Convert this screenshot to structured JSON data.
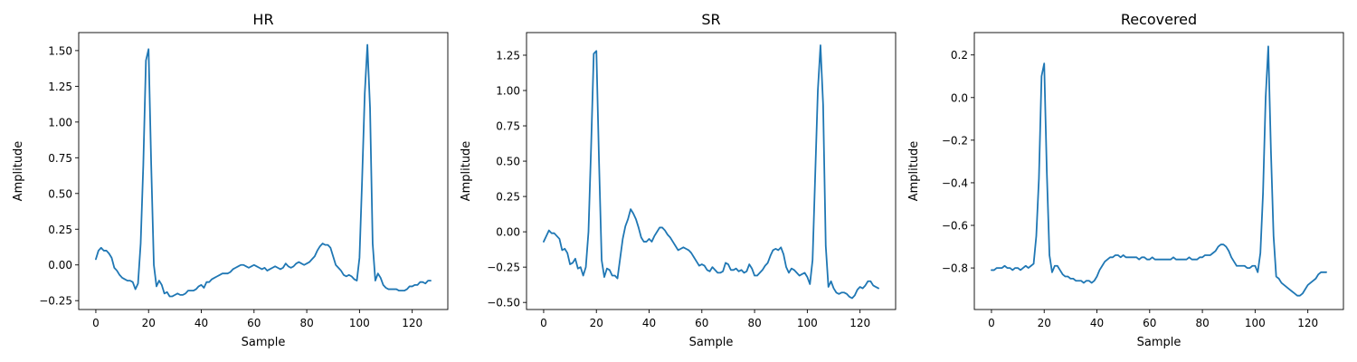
{
  "chart_data": [
    {
      "type": "line",
      "title": "HR",
      "xlabel": "Sample",
      "ylabel": "Amplitude",
      "xlim": [
        -6.5,
        133.5
      ],
      "ylim": [
        -0.312,
        1.626
      ],
      "xticks": [
        0,
        20,
        40,
        60,
        80,
        100,
        120
      ],
      "xtick_labels": [
        "0",
        "20",
        "40",
        "60",
        "80",
        "100",
        "120"
      ],
      "yticks": [
        -0.25,
        0,
        0.25,
        0.5,
        0.75,
        1.0,
        1.25,
        1.5
      ],
      "ytick_labels": [
        "−0.25",
        "0.00",
        "0.25",
        "0.50",
        "0.75",
        "1.00",
        "1.25",
        "1.50"
      ],
      "grid": false,
      "series": [
        {
          "color": "#1f77b4",
          "x": [
            0,
            1,
            2,
            3,
            4,
            5,
            6,
            7,
            8,
            9,
            10,
            11,
            12,
            13,
            14,
            15,
            16,
            17,
            18,
            19,
            20,
            21,
            22,
            23,
            24,
            25,
            26,
            27,
            28,
            29,
            30,
            31,
            32,
            33,
            34,
            35,
            36,
            37,
            38,
            39,
            40,
            41,
            42,
            43,
            44,
            45,
            46,
            47,
            48,
            49,
            50,
            51,
            52,
            53,
            54,
            55,
            56,
            57,
            58,
            59,
            60,
            61,
            62,
            63,
            64,
            65,
            66,
            67,
            68,
            69,
            70,
            71,
            72,
            73,
            74,
            75,
            76,
            77,
            78,
            79,
            80,
            81,
            82,
            83,
            84,
            85,
            86,
            87,
            88,
            89,
            90,
            91,
            92,
            93,
            94,
            95,
            96,
            97,
            98,
            99,
            100,
            101,
            102,
            103,
            104,
            105,
            106,
            107,
            108,
            109,
            110,
            111,
            112,
            113,
            114,
            115,
            116,
            117,
            118,
            119,
            120,
            121,
            122,
            123,
            124,
            125,
            126,
            127
          ],
          "y": [
            0.04,
            0.1,
            0.12,
            0.1,
            0.1,
            0.08,
            0.05,
            -0.02,
            -0.04,
            -0.07,
            -0.09,
            -0.1,
            -0.11,
            -0.11,
            -0.12,
            -0.17,
            -0.13,
            0.15,
            0.7,
            1.43,
            1.51,
            0.7,
            0.0,
            -0.15,
            -0.11,
            -0.14,
            -0.2,
            -0.19,
            -0.22,
            -0.22,
            -0.21,
            -0.2,
            -0.21,
            -0.21,
            -0.2,
            -0.18,
            -0.18,
            -0.18,
            -0.17,
            -0.15,
            -0.14,
            -0.16,
            -0.12,
            -0.12,
            -0.1,
            -0.09,
            -0.08,
            -0.07,
            -0.06,
            -0.06,
            -0.06,
            -0.05,
            -0.03,
            -0.02,
            -0.01,
            -0.0,
            -0.0,
            -0.01,
            -0.02,
            -0.01,
            -0.0,
            -0.01,
            -0.02,
            -0.03,
            -0.02,
            -0.04,
            -0.03,
            -0.02,
            -0.01,
            -0.02,
            -0.03,
            -0.02,
            0.01,
            -0.01,
            -0.02,
            -0.01,
            0.01,
            0.02,
            0.01,
            0.0,
            0.01,
            0.02,
            0.04,
            0.06,
            0.1,
            0.13,
            0.15,
            0.14,
            0.14,
            0.12,
            0.06,
            0.0,
            -0.02,
            -0.04,
            -0.07,
            -0.08,
            -0.07,
            -0.08,
            -0.1,
            -0.11,
            0.05,
            0.6,
            1.2,
            1.54,
            1.1,
            0.15,
            -0.11,
            -0.06,
            -0.09,
            -0.14,
            -0.16,
            -0.17,
            -0.17,
            -0.17,
            -0.17,
            -0.18,
            -0.18,
            -0.18,
            -0.17,
            -0.15,
            -0.15,
            -0.14,
            -0.14,
            -0.12,
            -0.12,
            -0.13,
            -0.11,
            -0.11
          ]
        }
      ]
    },
    {
      "type": "line",
      "title": "SR",
      "xlabel": "Sample",
      "ylabel": "Amplitude",
      "xlim": [
        -6.5,
        133.5
      ],
      "ylim": [
        -0.55,
        1.41
      ],
      "xticks": [
        0,
        20,
        40,
        60,
        80,
        100,
        120
      ],
      "xtick_labels": [
        "0",
        "20",
        "40",
        "60",
        "80",
        "100",
        "120"
      ],
      "yticks": [
        -0.5,
        -0.25,
        0,
        0.25,
        0.5,
        0.75,
        1.0,
        1.25
      ],
      "ytick_labels": [
        "−0.50",
        "−0.25",
        "0.00",
        "0.25",
        "0.50",
        "0.75",
        "1.00",
        "1.25"
      ],
      "grid": false,
      "series": [
        {
          "color": "#1f77b4",
          "x": [
            0,
            1,
            2,
            3,
            4,
            5,
            6,
            7,
            8,
            9,
            10,
            11,
            12,
            13,
            14,
            15,
            16,
            17,
            18,
            19,
            20,
            21,
            22,
            23,
            24,
            25,
            26,
            27,
            28,
            29,
            30,
            31,
            32,
            33,
            34,
            35,
            36,
            37,
            38,
            39,
            40,
            41,
            42,
            43,
            44,
            45,
            46,
            47,
            48,
            49,
            50,
            51,
            52,
            53,
            54,
            55,
            56,
            57,
            58,
            59,
            60,
            61,
            62,
            63,
            64,
            65,
            66,
            67,
            68,
            69,
            70,
            71,
            72,
            73,
            74,
            75,
            76,
            77,
            78,
            79,
            80,
            81,
            82,
            83,
            84,
            85,
            86,
            87,
            88,
            89,
            90,
            91,
            92,
            93,
            94,
            95,
            96,
            97,
            98,
            99,
            100,
            101,
            102,
            103,
            104,
            105,
            106,
            107,
            108,
            109,
            110,
            111,
            112,
            113,
            114,
            115,
            116,
            117,
            118,
            119,
            120,
            121,
            122,
            123,
            124,
            125,
            126,
            127
          ],
          "y": [
            -0.07,
            -0.03,
            0.01,
            -0.01,
            -0.01,
            -0.03,
            -0.05,
            -0.13,
            -0.12,
            -0.15,
            -0.23,
            -0.22,
            -0.19,
            -0.26,
            -0.25,
            -0.31,
            -0.25,
            0.0,
            0.6,
            1.26,
            1.28,
            0.5,
            -0.2,
            -0.32,
            -0.26,
            -0.27,
            -0.31,
            -0.31,
            -0.33,
            -0.19,
            -0.05,
            0.04,
            0.09,
            0.16,
            0.13,
            0.09,
            0.03,
            -0.04,
            -0.07,
            -0.07,
            -0.05,
            -0.07,
            -0.03,
            -0.0,
            0.03,
            0.03,
            0.01,
            -0.02,
            -0.04,
            -0.07,
            -0.1,
            -0.13,
            -0.12,
            -0.11,
            -0.12,
            -0.13,
            -0.15,
            -0.18,
            -0.21,
            -0.24,
            -0.23,
            -0.24,
            -0.27,
            -0.28,
            -0.25,
            -0.27,
            -0.29,
            -0.29,
            -0.28,
            -0.22,
            -0.23,
            -0.27,
            -0.27,
            -0.26,
            -0.28,
            -0.27,
            -0.29,
            -0.28,
            -0.23,
            -0.26,
            -0.31,
            -0.31,
            -0.29,
            -0.27,
            -0.24,
            -0.22,
            -0.17,
            -0.13,
            -0.12,
            -0.13,
            -0.11,
            -0.16,
            -0.25,
            -0.29,
            -0.26,
            -0.27,
            -0.29,
            -0.31,
            -0.3,
            -0.29,
            -0.32,
            -0.37,
            -0.2,
            0.4,
            1.0,
            1.32,
            0.9,
            -0.1,
            -0.39,
            -0.35,
            -0.4,
            -0.43,
            -0.44,
            -0.43,
            -0.43,
            -0.44,
            -0.46,
            -0.47,
            -0.45,
            -0.41,
            -0.39,
            -0.4,
            -0.38,
            -0.35,
            -0.35,
            -0.38,
            -0.39,
            -0.4
          ]
        }
      ]
    },
    {
      "type": "line",
      "title": "Recovered",
      "xlabel": "Sample",
      "ylabel": "Amplitude",
      "xlim": [
        -6.5,
        133.5
      ],
      "ylim": [
        -0.995,
        0.305
      ],
      "xticks": [
        0,
        20,
        40,
        60,
        80,
        100,
        120
      ],
      "xtick_labels": [
        "0",
        "20",
        "40",
        "60",
        "80",
        "100",
        "120"
      ],
      "yticks": [
        -0.8,
        -0.6,
        -0.4,
        -0.2,
        0,
        0.2
      ],
      "ytick_labels": [
        "−0.8",
        "−0.6",
        "−0.4",
        "−0.2",
        "0.0",
        "0.2"
      ],
      "grid": false,
      "series": [
        {
          "color": "#1f77b4",
          "x": [
            0,
            1,
            2,
            3,
            4,
            5,
            6,
            7,
            8,
            9,
            10,
            11,
            12,
            13,
            14,
            15,
            16,
            17,
            18,
            19,
            20,
            21,
            22,
            23,
            24,
            25,
            26,
            27,
            28,
            29,
            30,
            31,
            32,
            33,
            34,
            35,
            36,
            37,
            38,
            39,
            40,
            41,
            42,
            43,
            44,
            45,
            46,
            47,
            48,
            49,
            50,
            51,
            52,
            53,
            54,
            55,
            56,
            57,
            58,
            59,
            60,
            61,
            62,
            63,
            64,
            65,
            66,
            67,
            68,
            69,
            70,
            71,
            72,
            73,
            74,
            75,
            76,
            77,
            78,
            79,
            80,
            81,
            82,
            83,
            84,
            85,
            86,
            87,
            88,
            89,
            90,
            91,
            92,
            93,
            94,
            95,
            96,
            97,
            98,
            99,
            100,
            101,
            102,
            103,
            104,
            105,
            106,
            107,
            108,
            109,
            110,
            111,
            112,
            113,
            114,
            115,
            116,
            117,
            118,
            119,
            120,
            121,
            122,
            123,
            124,
            125,
            126,
            127
          ],
          "y": [
            -0.81,
            -0.81,
            -0.8,
            -0.8,
            -0.8,
            -0.79,
            -0.8,
            -0.8,
            -0.81,
            -0.8,
            -0.8,
            -0.81,
            -0.8,
            -0.79,
            -0.8,
            -0.79,
            -0.78,
            -0.65,
            -0.38,
            0.1,
            0.16,
            -0.35,
            -0.74,
            -0.82,
            -0.79,
            -0.79,
            -0.81,
            -0.83,
            -0.84,
            -0.84,
            -0.85,
            -0.85,
            -0.86,
            -0.86,
            -0.86,
            -0.87,
            -0.86,
            -0.86,
            -0.87,
            -0.86,
            -0.84,
            -0.81,
            -0.79,
            -0.77,
            -0.76,
            -0.75,
            -0.75,
            -0.74,
            -0.74,
            -0.75,
            -0.74,
            -0.75,
            -0.75,
            -0.75,
            -0.75,
            -0.75,
            -0.76,
            -0.75,
            -0.75,
            -0.76,
            -0.76,
            -0.75,
            -0.76,
            -0.76,
            -0.76,
            -0.76,
            -0.76,
            -0.76,
            -0.76,
            -0.75,
            -0.76,
            -0.76,
            -0.76,
            -0.76,
            -0.76,
            -0.75,
            -0.76,
            -0.76,
            -0.76,
            -0.75,
            -0.75,
            -0.74,
            -0.74,
            -0.74,
            -0.73,
            -0.72,
            -0.7,
            -0.69,
            -0.69,
            -0.7,
            -0.72,
            -0.75,
            -0.77,
            -0.79,
            -0.79,
            -0.79,
            -0.79,
            -0.8,
            -0.8,
            -0.79,
            -0.79,
            -0.82,
            -0.73,
            -0.45,
            0.0,
            0.24,
            -0.25,
            -0.65,
            -0.84,
            -0.85,
            -0.87,
            -0.88,
            -0.89,
            -0.9,
            -0.91,
            -0.92,
            -0.93,
            -0.93,
            -0.92,
            -0.9,
            -0.88,
            -0.87,
            -0.86,
            -0.85,
            -0.83,
            -0.82,
            -0.82,
            -0.82
          ]
        }
      ]
    }
  ]
}
